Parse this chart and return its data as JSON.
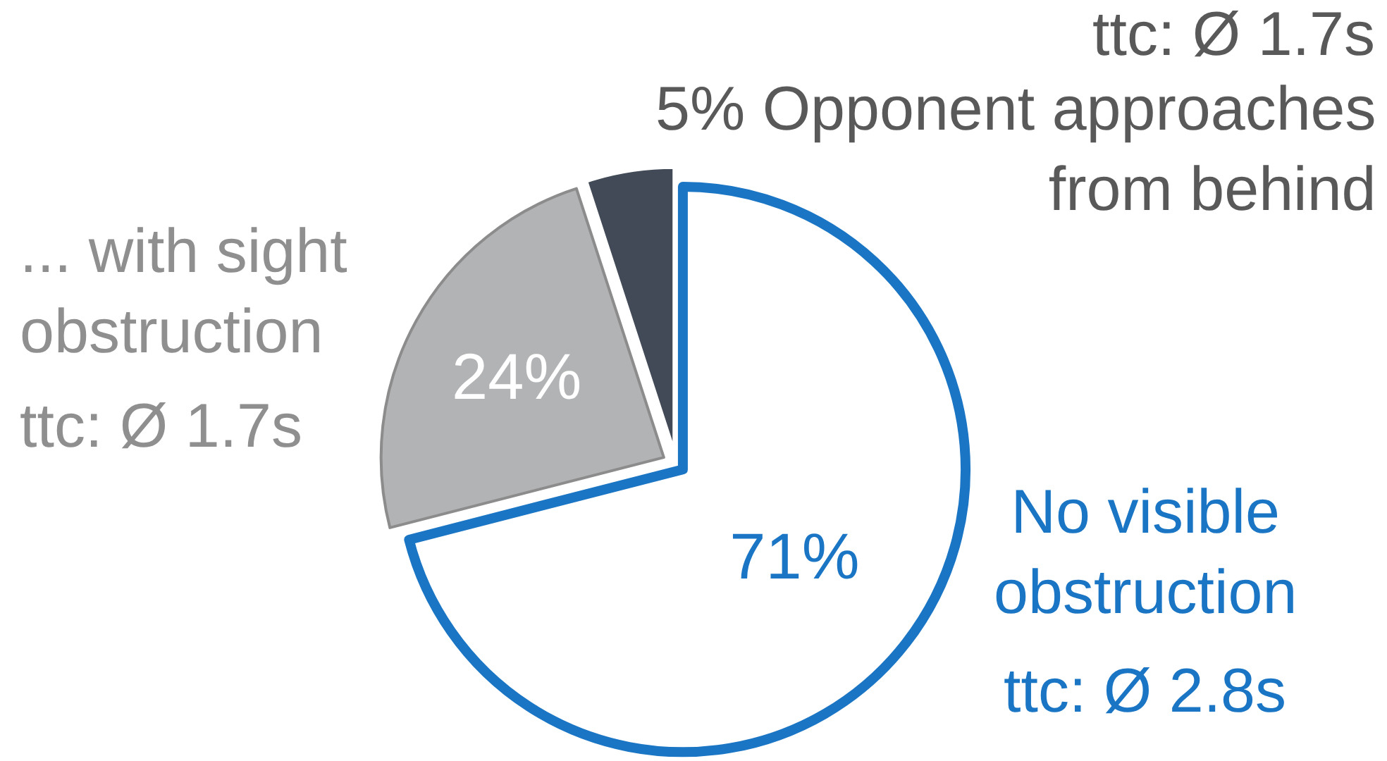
{
  "chart_data": {
    "type": "pie",
    "categories": [
      "No visible obstruction",
      "... with sight obstruction",
      "Opponent approaches from behind"
    ],
    "values": [
      71,
      24,
      5
    ],
    "value_labels": [
      "71%",
      "24%",
      "5%"
    ],
    "colors": [
      "#ffffff",
      "#b2b3b5",
      "#414a56"
    ],
    "annotations": [
      "ttc: Ø 2.8s",
      "ttc: Ø 1.7s",
      "ttc: Ø 1.7s"
    ],
    "legend": false
  }
}
